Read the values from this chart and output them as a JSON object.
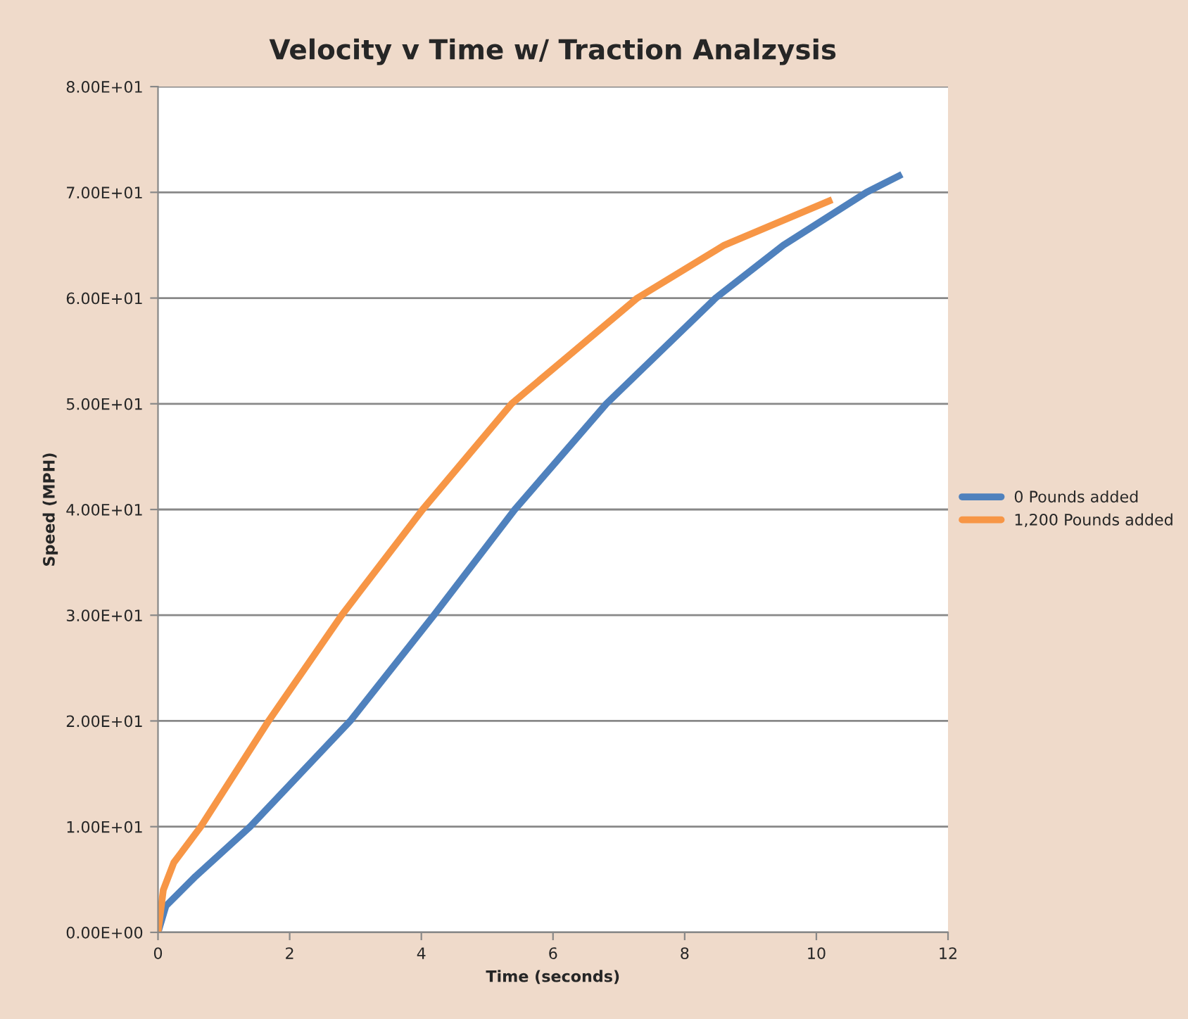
{
  "chart_data": {
    "type": "line",
    "title": "Velocity v Time w/ Traction Analzysis",
    "xlabel": "Time (seconds)",
    "ylabel": "Speed (MPH)",
    "series": [
      {
        "name": "0 Pounds added",
        "color": "#4f81bd",
        "x": [
          0,
          0.12,
          0.57,
          1.4,
          2.92,
          4.19,
          5.42,
          6.81,
          8.47,
          9.5,
          10.76,
          11.3
        ],
        "values": [
          0,
          2.5,
          5.3,
          10,
          20,
          30,
          40,
          50,
          60,
          65,
          70,
          71.7
        ]
      },
      {
        "name": "1,200 Pounds added",
        "color": "#f79646",
        "x": [
          0,
          0.08,
          0.24,
          0.65,
          1.68,
          2.79,
          4.02,
          5.37,
          7.28,
          8.6,
          10.24
        ],
        "values": [
          0,
          4,
          6.6,
          10,
          20,
          30,
          40,
          50,
          60,
          65,
          69.3
        ]
      }
    ],
    "xlim": [
      0,
      12
    ],
    "xticks": [
      0,
      2,
      4,
      6,
      8,
      10,
      12
    ],
    "ylim": [
      0,
      80
    ],
    "yticks": [
      {
        "value": 0,
        "label": "0.00E+00"
      },
      {
        "value": 10,
        "label": "1.00E+01"
      },
      {
        "value": 20,
        "label": "2.00E+01"
      },
      {
        "value": 30,
        "label": "3.00E+01"
      },
      {
        "value": 40,
        "label": "4.00E+01"
      },
      {
        "value": 50,
        "label": "5.00E+01"
      },
      {
        "value": 60,
        "label": "6.00E+01"
      },
      {
        "value": 70,
        "label": "7.00E+01"
      },
      {
        "value": 80,
        "label": "8.00E+01"
      }
    ],
    "grid": "y",
    "legend": "right",
    "marker": "none",
    "line_style": "solid"
  }
}
